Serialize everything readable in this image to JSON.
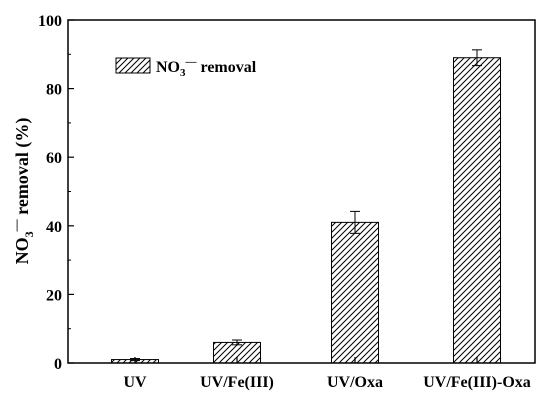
{
  "chart_data": {
    "type": "bar",
    "categories": [
      "UV",
      "UV/Fe(III)",
      "UV/Oxa",
      "UV/Fe(III)-Oxa"
    ],
    "series": [
      {
        "name": "NO3− removal",
        "legend": {
          "base": "NO",
          "sub": "3",
          "sup": "—",
          "rest": " removal"
        },
        "values": [
          1.0,
          6.0,
          41.0,
          89.0
        ],
        "errors": [
          0.3,
          0.7,
          3.2,
          2.3
        ]
      }
    ],
    "ylabel": {
      "base": "NO",
      "sub": "3",
      "sup": "—",
      "rest": " removal (%)"
    },
    "xlabel": "",
    "ylim": [
      0,
      100
    ],
    "yticks": [
      0,
      20,
      40,
      60,
      80,
      100
    ],
    "fill_pattern": "diagonal hatch",
    "legend_position": "top-left",
    "grid": false
  }
}
